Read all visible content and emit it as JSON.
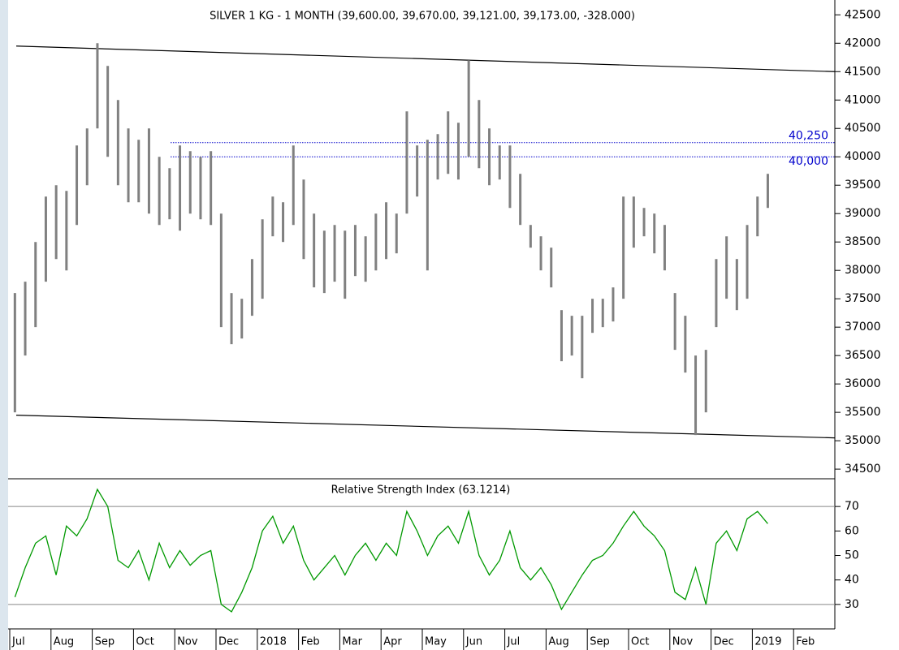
{
  "chart_data": [
    {
      "type": "ohlc",
      "title": "SILVER 1 KG - 1 MONTH (39,600.00, 39,670.00, 39,121.00, 39,173.00, -328.000)",
      "color": "#808080",
      "high": [
        37600,
        37800,
        38500,
        39300,
        39500,
        39400,
        40200,
        40500,
        42000,
        41600,
        41000,
        40500,
        40300,
        40500,
        40000,
        39800,
        40200,
        40100,
        40000,
        40100,
        39000,
        37600,
        37500,
        38200,
        38900,
        39300,
        39200,
        40200,
        39600,
        39000,
        38700,
        38800,
        38700,
        38800,
        38600,
        39000,
        39200,
        39000,
        40800,
        40200,
        40300,
        40400,
        40800,
        40600,
        41700,
        41000,
        40500,
        40200,
        40200,
        39700,
        38800,
        38600,
        38400,
        37300,
        37200,
        37200,
        37500,
        37500,
        37700,
        39300,
        39300,
        39100,
        39000,
        38800,
        37600,
        37200,
        36500,
        36600,
        38200,
        38600,
        38200,
        38800,
        39300,
        39700,
        null,
        null,
        null,
        null,
        null,
        null
      ],
      "low": [
        35500,
        36500,
        37000,
        37800,
        38200,
        38000,
        38800,
        39500,
        40500,
        40000,
        39500,
        39200,
        39200,
        39000,
        38800,
        38900,
        38700,
        39000,
        38900,
        38800,
        37000,
        36700,
        36800,
        37200,
        37500,
        38600,
        38500,
        38800,
        38200,
        37700,
        37600,
        37800,
        37500,
        37900,
        37800,
        38000,
        38200,
        38300,
        39000,
        39300,
        38000,
        39600,
        39700,
        39600,
        40000,
        39800,
        39500,
        39600,
        39100,
        38800,
        38400,
        38000,
        37700,
        36400,
        36500,
        36100,
        36900,
        37000,
        37100,
        37500,
        38400,
        38600,
        38300,
        38000,
        36600,
        36200,
        35100,
        35500,
        37000,
        37500,
        37300,
        37500,
        38600,
        39100,
        null,
        null,
        null,
        null,
        null,
        null
      ],
      "ylim": [
        34330,
        42690
      ],
      "yticks": [
        34500,
        35000,
        35500,
        36000,
        36500,
        37000,
        37500,
        38000,
        38500,
        39000,
        39500,
        40000,
        40500,
        41000,
        41500,
        42000,
        42500
      ],
      "hlines": [
        {
          "value": 40250,
          "label": "40,250"
        },
        {
          "value": 40000,
          "label": "40,000"
        }
      ],
      "hline_color": "#0000cc",
      "trendlines": [
        {
          "values": [
            41950,
            41500
          ]
        },
        {
          "values": [
            35450,
            35050
          ]
        }
      ]
    },
    {
      "type": "line",
      "title": "Relative Strength Index (63.1214)",
      "categories": [
        "Jul",
        null,
        null,
        null,
        "Aug",
        null,
        null,
        null,
        "Sep",
        null,
        null,
        null,
        "Oct",
        null,
        null,
        null,
        "Nov",
        null,
        null,
        null,
        "Dec",
        null,
        null,
        null,
        "2018",
        null,
        null,
        null,
        "Feb",
        null,
        null,
        null,
        "Mar",
        null,
        null,
        null,
        "Apr",
        null,
        null,
        null,
        "May",
        null,
        null,
        null,
        "Jun",
        null,
        null,
        null,
        "Jul",
        null,
        null,
        null,
        "Aug",
        null,
        null,
        null,
        "Sep",
        null,
        null,
        null,
        "Oct",
        null,
        null,
        null,
        "Nov",
        null,
        null,
        null,
        "Dec",
        null,
        null,
        null,
        "2019",
        null,
        null,
        null,
        "Feb",
        null,
        null,
        null
      ],
      "series": [
        {
          "color": "#009900",
          "values": [
            33,
            45,
            55,
            58,
            42,
            62,
            58,
            65,
            77,
            70,
            48,
            45,
            52,
            40,
            55,
            45,
            52,
            46,
            50,
            52,
            30,
            27,
            35,
            45,
            60,
            66,
            55,
            62,
            48,
            40,
            45,
            50,
            42,
            50,
            55,
            48,
            55,
            50,
            68,
            60,
            50,
            58,
            62,
            55,
            68,
            50,
            42,
            48,
            60,
            45,
            40,
            45,
            38,
            28,
            35,
            42,
            48,
            50,
            55,
            62,
            68,
            62,
            58,
            52,
            35,
            32,
            45,
            30,
            55,
            60,
            52,
            65,
            68,
            63,
            null,
            null,
            null,
            null,
            null,
            null
          ]
        }
      ],
      "ylim": [
        20,
        80
      ],
      "yticks": [
        30,
        40,
        50,
        60,
        70
      ],
      "hlines": [
        30,
        70
      ]
    }
  ]
}
